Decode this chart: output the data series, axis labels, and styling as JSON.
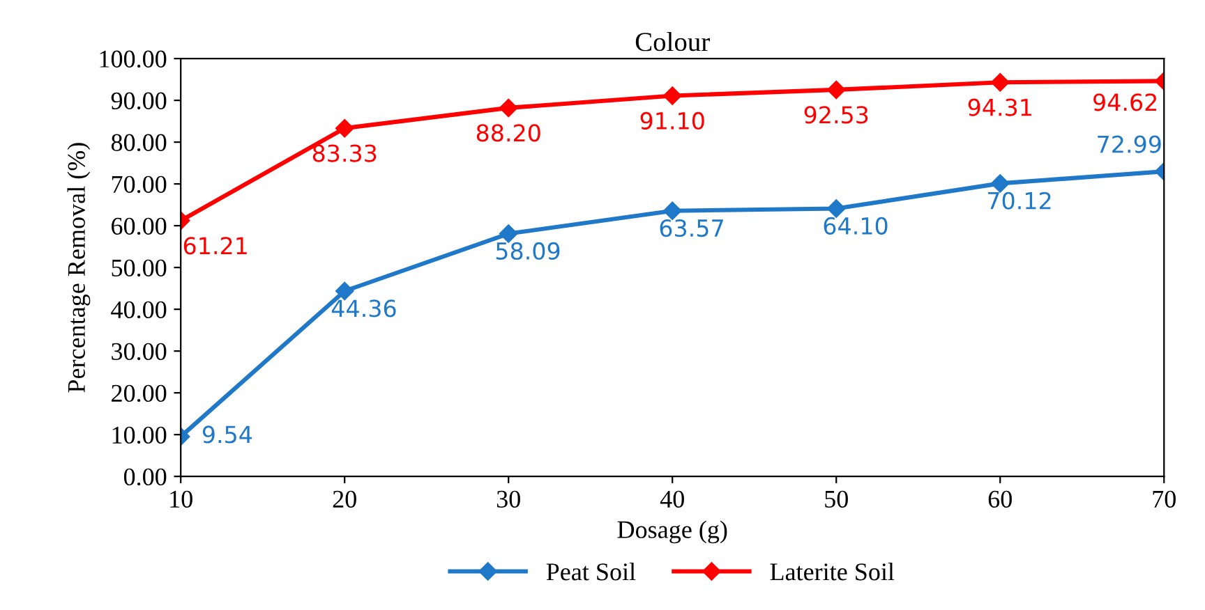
{
  "chart_data": {
    "type": "line",
    "title": "Colour",
    "xlabel": "Dosage (g)",
    "ylabel": "Percentage Removal (%)",
    "x": [
      10,
      20,
      30,
      40,
      50,
      60,
      70
    ],
    "series": [
      {
        "name": "Peat Soil",
        "color": "#1f78c8",
        "values": [
          9.54,
          44.36,
          58.09,
          63.57,
          64.1,
          70.12,
          72.99
        ],
        "value_labels": [
          "9.54",
          "44.36",
          "58.09",
          "63.57",
          "64.10",
          "70.12",
          "72.99"
        ]
      },
      {
        "name": "Laterite Soil",
        "color": "#ff0000",
        "values": [
          61.21,
          83.33,
          88.2,
          91.1,
          92.53,
          94.31,
          94.62
        ],
        "value_labels": [
          "61.21",
          "83.33",
          "88.20",
          "91.10",
          "92.53",
          "94.31",
          "94.62"
        ]
      }
    ],
    "xlim": [
      10,
      70
    ],
    "xticks": [
      10,
      20,
      30,
      40,
      50,
      60,
      70
    ],
    "ylim": [
      0,
      100
    ],
    "yticks": [
      {
        "value": 0,
        "label": "0.00"
      },
      {
        "value": 10,
        "label": "10.00"
      },
      {
        "value": 20,
        "label": "20.00"
      },
      {
        "value": 30,
        "label": "30.00"
      },
      {
        "value": 40,
        "label": "40.00"
      },
      {
        "value": 50,
        "label": "50.00"
      },
      {
        "value": 60,
        "label": "60.00"
      },
      {
        "value": 70,
        "label": "70.00"
      },
      {
        "value": 80,
        "label": "80.00"
      },
      {
        "value": 90,
        "label": "90.00"
      },
      {
        "value": 100,
        "label": "100.00"
      }
    ],
    "grid": false,
    "legend": "bottom",
    "marker": "diamond",
    "line_style": "solid"
  }
}
